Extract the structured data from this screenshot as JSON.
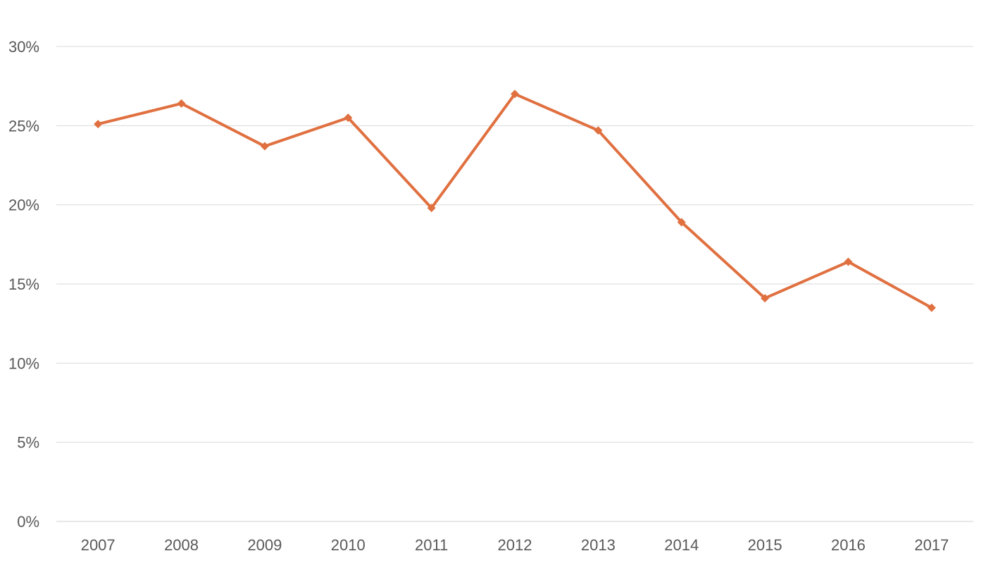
{
  "chart_data": {
    "type": "line",
    "title": "",
    "xlabel": "",
    "ylabel": "",
    "categories": [
      "2007",
      "2008",
      "2009",
      "2010",
      "2011",
      "2012",
      "2013",
      "2014",
      "2015",
      "2016",
      "2017"
    ],
    "series": [
      {
        "values": [
          0.251,
          0.264,
          0.237,
          0.255,
          0.198,
          0.27,
          0.247,
          0.189,
          0.141,
          0.164,
          0.135
        ],
        "color": "#e07040",
        "marker": "diamond"
      }
    ],
    "ylim": [
      0,
      0.3
    ],
    "yticks": [
      0,
      0.05,
      0.1,
      0.15,
      0.2,
      0.25,
      0.3
    ],
    "ytick_labels": [
      "0%",
      "5%",
      "10%",
      "15%",
      "20%",
      "25%",
      "30%"
    ],
    "grid": true,
    "legend": "none"
  }
}
